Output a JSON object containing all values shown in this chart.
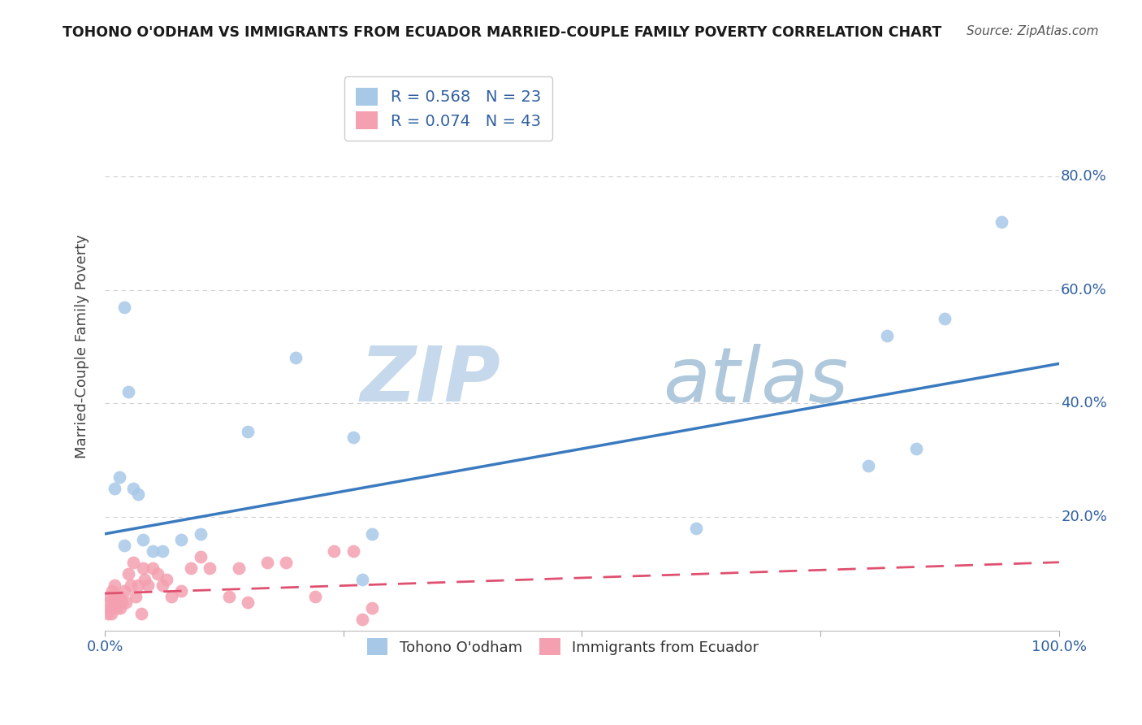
{
  "title": "TOHONO O'ODHAM VS IMMIGRANTS FROM ECUADOR MARRIED-COUPLE FAMILY POVERTY CORRELATION CHART",
  "source": "Source: ZipAtlas.com",
  "ylabel": "Married-Couple Family Poverty",
  "xlim": [
    0,
    1.0
  ],
  "ylim": [
    0,
    1.0
  ],
  "blue_color": "#a8c8e8",
  "blue_line_color": "#3a7abf",
  "pink_color": "#f4a0b0",
  "pink_line_color": "#e05070",
  "legend_blue_label": "Tohono O'odham",
  "legend_pink_label": "Immigrants from Ecuador",
  "R_blue": 0.568,
  "N_blue": 23,
  "R_pink": 0.074,
  "N_pink": 43,
  "blue_x": [
    0.01,
    0.015,
    0.02,
    0.025,
    0.02,
    0.03,
    0.035,
    0.04,
    0.05,
    0.06,
    0.08,
    0.1,
    0.15,
    0.2,
    0.26,
    0.27,
    0.28,
    0.62,
    0.8,
    0.82,
    0.85,
    0.88,
    0.94
  ],
  "blue_y": [
    0.25,
    0.27,
    0.57,
    0.42,
    0.15,
    0.25,
    0.24,
    0.16,
    0.14,
    0.14,
    0.16,
    0.17,
    0.35,
    0.48,
    0.34,
    0.09,
    0.17,
    0.18,
    0.29,
    0.52,
    0.32,
    0.55,
    0.72
  ],
  "pink_x": [
    0.003,
    0.004,
    0.005,
    0.006,
    0.007,
    0.008,
    0.009,
    0.01,
    0.012,
    0.013,
    0.015,
    0.016,
    0.018,
    0.02,
    0.022,
    0.025,
    0.027,
    0.03,
    0.032,
    0.035,
    0.038,
    0.04,
    0.042,
    0.045,
    0.05,
    0.055,
    0.06,
    0.065,
    0.07,
    0.08,
    0.09,
    0.1,
    0.11,
    0.13,
    0.14,
    0.15,
    0.17,
    0.19,
    0.22,
    0.24,
    0.26,
    0.27,
    0.28
  ],
  "pink_y": [
    0.03,
    0.06,
    0.05,
    0.04,
    0.03,
    0.07,
    0.05,
    0.08,
    0.06,
    0.04,
    0.06,
    0.04,
    0.05,
    0.07,
    0.05,
    0.1,
    0.08,
    0.12,
    0.06,
    0.08,
    0.03,
    0.11,
    0.09,
    0.08,
    0.11,
    0.1,
    0.08,
    0.09,
    0.06,
    0.07,
    0.11,
    0.13,
    0.11,
    0.06,
    0.11,
    0.05,
    0.12,
    0.12,
    0.06,
    0.14,
    0.14,
    0.02,
    0.04
  ],
  "watermark_zip": "ZIP",
  "watermark_atlas": "atlas",
  "background_color": "#ffffff",
  "grid_color": "#d0d0d0",
  "ytick_positions": [
    0.2,
    0.4,
    0.6,
    0.8
  ],
  "ytick_labels": [
    "20.0%",
    "40.0%",
    "60.0%",
    "80.0%"
  ],
  "xtick_positions": [
    0.0,
    0.25,
    0.5,
    0.75,
    1.0
  ],
  "xtick_labels": [
    "0.0%",
    "",
    "",
    "",
    "100.0%"
  ]
}
